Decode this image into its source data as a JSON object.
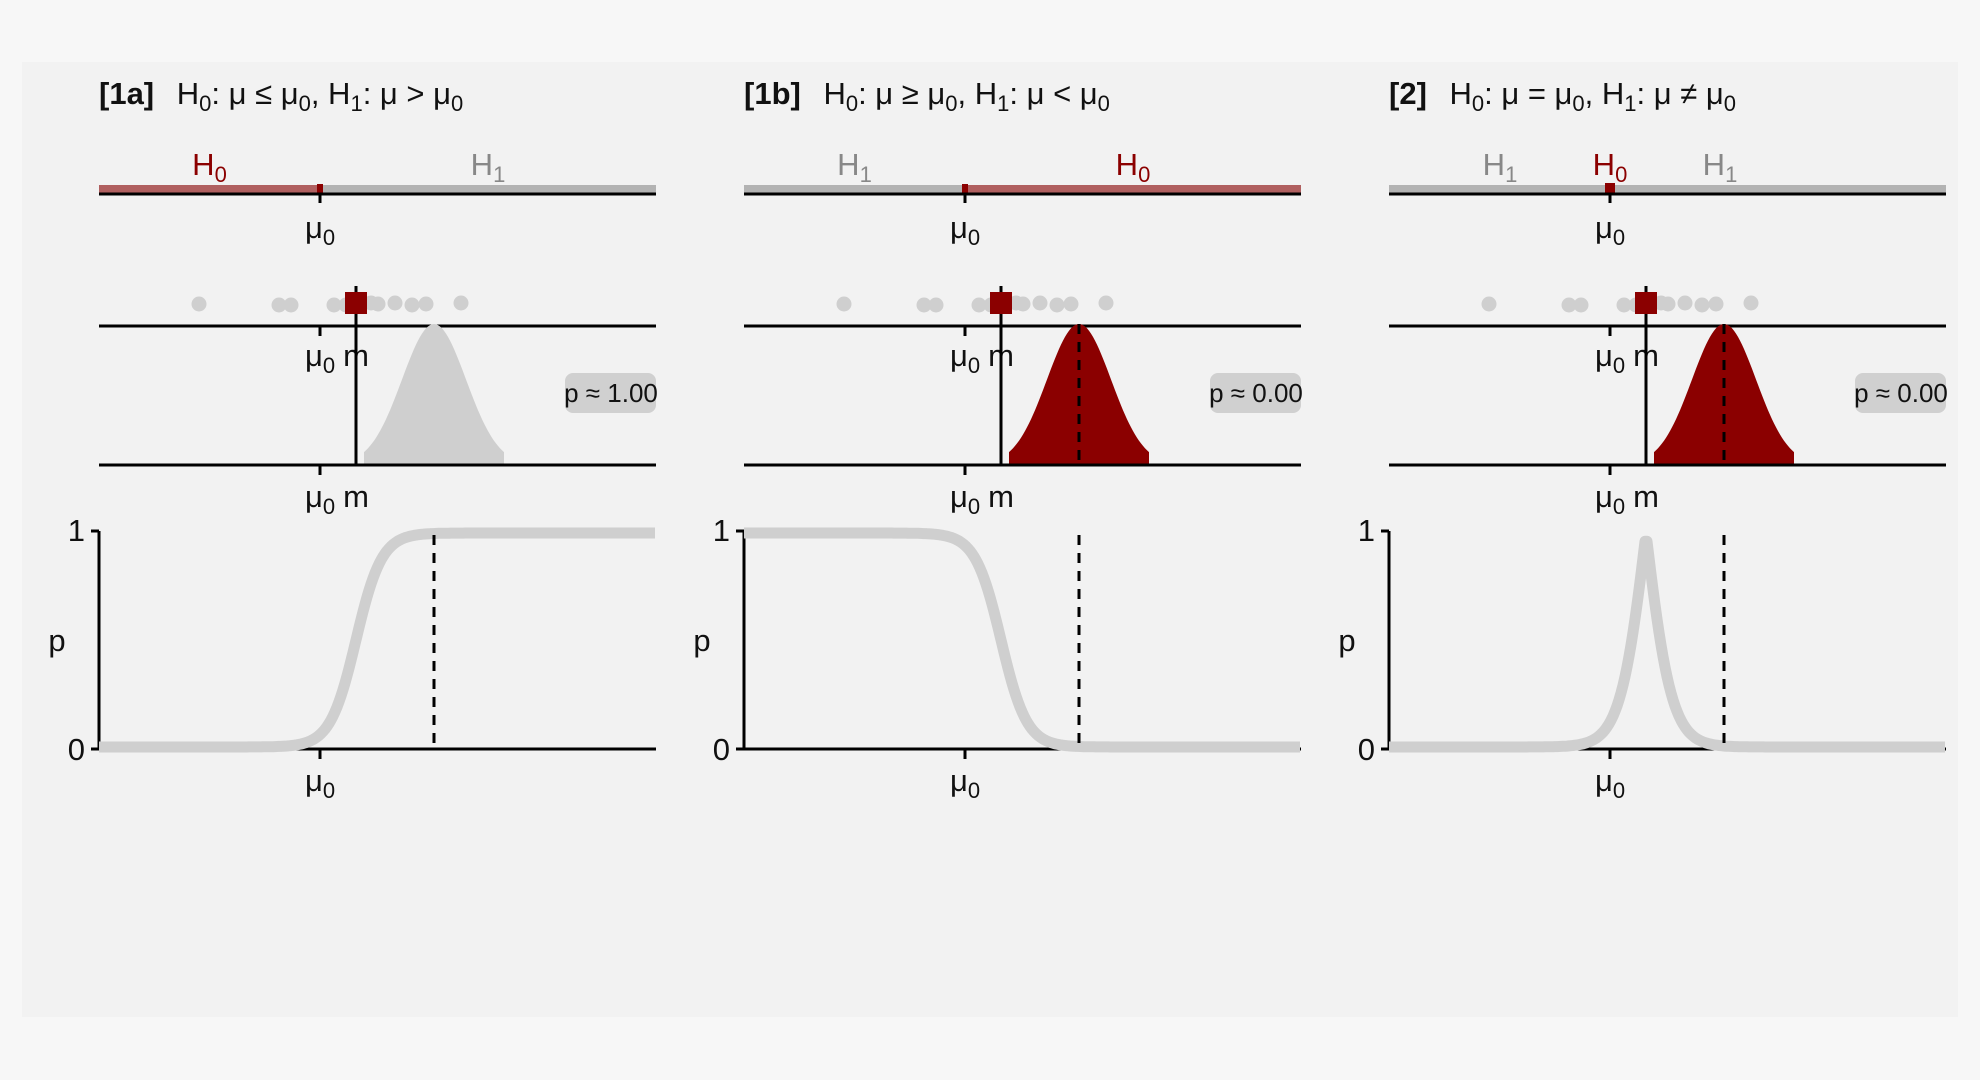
{
  "colors": {
    "h0": "#8b0000",
    "h0_band": "#b06060",
    "h1": "#888888",
    "h1_band": "#b3b3b3",
    "points": "#cfcfcf",
    "curve": "#cfcfcf",
    "axis": "#000000"
  },
  "panels": [
    {
      "tag": "[1a]",
      "h0_rel": "≤",
      "h1_rel": ">",
      "regions": [
        "H0",
        "H1"
      ],
      "p_label": "p ≈ 1.00",
      "p_shaded": false,
      "p_value": 1.0,
      "curve": "increasing"
    },
    {
      "tag": "[1b]",
      "h0_rel": "≥",
      "h1_rel": "<",
      "regions": [
        "H1",
        "H0"
      ],
      "p_label": "p ≈ 0.00",
      "p_shaded": true,
      "p_value": 0.0,
      "curve": "decreasing"
    },
    {
      "tag": "[2]",
      "h0_rel": "=",
      "h1_rel": "≠",
      "regions": [
        "H1",
        "H0",
        "H1"
      ],
      "p_label": "p ≈ 0.00",
      "p_shaded": true,
      "p_value": 0.0,
      "curve": "peak"
    }
  ],
  "labels": {
    "h": "H",
    "mu": "μ",
    "sub0": "0",
    "sub1": "1",
    "m": "m",
    "p_axis": "p",
    "y_top": "1",
    "y_bottom": "0"
  }
}
